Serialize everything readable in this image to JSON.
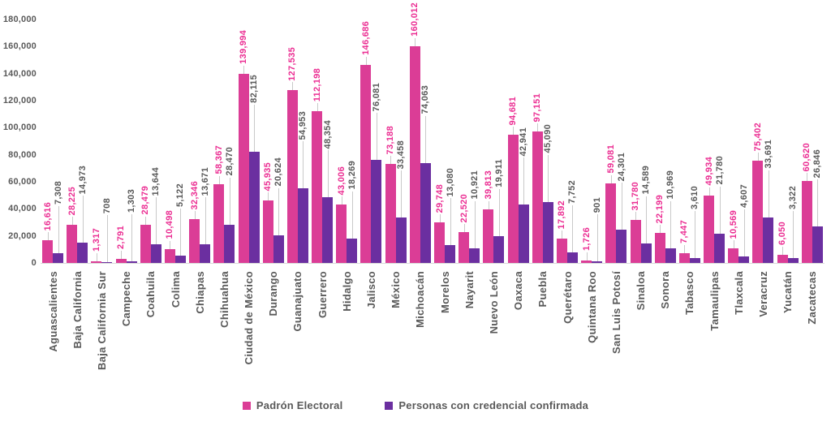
{
  "chart_data": {
    "type": "bar",
    "title": "",
    "xlabel": "",
    "ylabel": "",
    "ylim": [
      0,
      180000
    ],
    "y_tick_step": 20000,
    "y_tick_labels": [
      "0",
      "20,000",
      "40,000",
      "60,000",
      "80,000",
      "100,000",
      "120,000",
      "140,000",
      "160,000",
      "180,000"
    ],
    "grid": "off",
    "legend_position": "bottom",
    "data_label_style": "rotated-vertical-with-leader-lines",
    "categories": [
      "Aguascalientes",
      "Baja California",
      "Baja California Sur",
      "Campeche",
      "Coahuila",
      "Colima",
      "Chiapas",
      "Chihuahua",
      "Ciudad de México",
      "Durango",
      "Guanajuato",
      "Guerrero",
      "Hidalgo",
      "Jalisco",
      "México",
      "Michoacán",
      "Morelos",
      "Nayarit",
      "Nuevo León",
      "Oaxaca",
      "Puebla",
      "Querétaro",
      "Quintana Roo",
      "San Luis Potosí",
      "Sinaloa",
      "Sonora",
      "Tabasco",
      "Tamaulipas",
      "Tlaxcala",
      "Veracruz",
      "Yucatán",
      "Zacatecas"
    ],
    "series": [
      {
        "name": "Padrón Electoral",
        "color": "#DB3D96",
        "label_color": "#EB2D92",
        "values": [
          16616,
          28225,
          1317,
          2791,
          28479,
          10498,
          32346,
          58367,
          139994,
          45935,
          127535,
          112198,
          43006,
          146686,
          73188,
          160012,
          29748,
          22520,
          39813,
          94681,
          97151,
          17892,
          1726,
          59081,
          31780,
          22199,
          7447,
          49934,
          10569,
          75402,
          6050,
          60620
        ]
      },
      {
        "name": "Personas con credencial confirmada",
        "color": "#6B2FA0",
        "label_color": "#595959",
        "values": [
          7308,
          14973,
          708,
          1303,
          13644,
          5122,
          13671,
          28470,
          82115,
          20624,
          54953,
          48354,
          18269,
          76081,
          33458,
          74063,
          13080,
          10921,
          19911,
          42941,
          45090,
          7752,
          901,
          24301,
          14589,
          10969,
          3610,
          21780,
          4607,
          33691,
          3322,
          26846
        ]
      }
    ]
  },
  "colors": {
    "axis_text": "#595959",
    "x_label_text": "#595959",
    "leader_line": "#c9c9c9",
    "baseline": "#d9d9d9",
    "background": "#ffffff"
  }
}
